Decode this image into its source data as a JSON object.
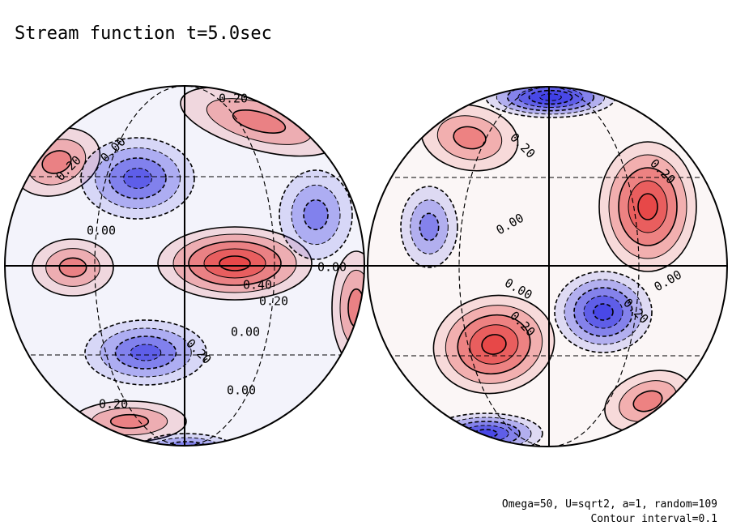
{
  "chart_data": {
    "type": "contour",
    "title": "Stream function t=5.0sec",
    "contour_labels": [
      "0.20",
      "0.00",
      "0.20",
      "0.00",
      "0.40",
      "0.20",
      "0.00",
      "0.00",
      "0.20",
      "0.00",
      "0.20",
      "0.20",
      "0.20",
      "0.00",
      "0.00",
      "0.20",
      "0.20",
      "0.00"
    ],
    "annotations": [
      "Omega=50, U=sqrt2, a=1, random=109",
      "Contour interval=0.1"
    ]
  }
}
